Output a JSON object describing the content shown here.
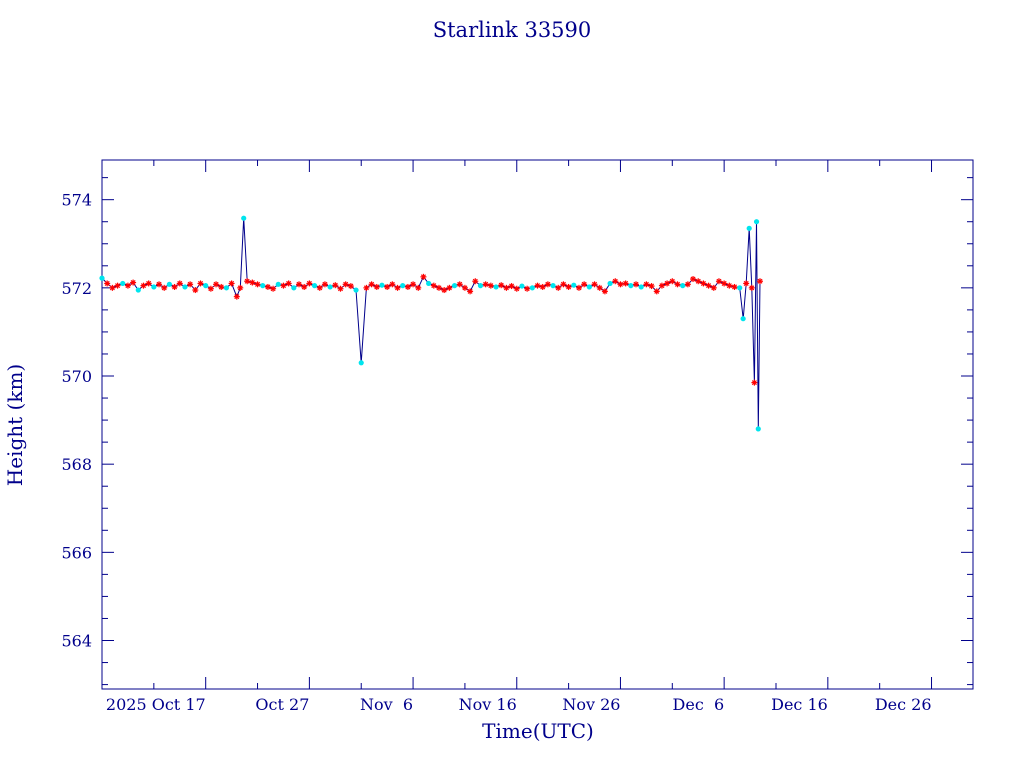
{
  "chart_data": {
    "type": "line",
    "title": "Starlink 33590",
    "xlabel": "Time(UTC)",
    "ylabel": "Height (km)",
    "xlim": [
      "2025-10-07",
      "2025-12-30"
    ],
    "ylim": [
      562.9,
      574.9
    ],
    "yticks": [
      564,
      566,
      568,
      570,
      572,
      574
    ],
    "xticks": [
      {
        "date": "2025-10-17",
        "label": "2025 Oct 17"
      },
      {
        "date": "2025-10-27",
        "label": "Oct 27"
      },
      {
        "date": "2025-11-06",
        "label": "Nov  6"
      },
      {
        "date": "2025-11-16",
        "label": "Nov 16"
      },
      {
        "date": "2025-11-26",
        "label": "Nov 26"
      },
      {
        "date": "2025-12-06",
        "label": "Dec  6"
      },
      {
        "date": "2025-12-16",
        "label": "Dec 16"
      },
      {
        "date": "2025-12-26",
        "label": "Dec 26"
      }
    ],
    "grid": false,
    "colors": {
      "axis": "#00008b",
      "line": "#00008b",
      "red_marker": "#ff0000",
      "cyan_marker": "#00e5ee"
    },
    "series": [
      {
        "marker_colors": "mixed",
        "points": [
          [
            "2025-10-07T00:00",
            572.22,
            "c"
          ],
          [
            "2025-10-07T12:00",
            572.1,
            "r"
          ],
          [
            "2025-10-08T00:00",
            572.0,
            "r"
          ],
          [
            "2025-10-08T12:00",
            572.05,
            "r"
          ],
          [
            "2025-10-09T00:00",
            572.1,
            "c"
          ],
          [
            "2025-10-09T12:00",
            572.05,
            "r"
          ],
          [
            "2025-10-10T00:00",
            572.12,
            "r"
          ],
          [
            "2025-10-10T12:00",
            571.95,
            "c"
          ],
          [
            "2025-10-11T00:00",
            572.05,
            "r"
          ],
          [
            "2025-10-11T12:00",
            572.1,
            "r"
          ],
          [
            "2025-10-12T00:00",
            572.02,
            "c"
          ],
          [
            "2025-10-12T12:00",
            572.08,
            "r"
          ],
          [
            "2025-10-13T00:00",
            572.0,
            "r"
          ],
          [
            "2025-10-13T12:00",
            572.08,
            "c"
          ],
          [
            "2025-10-14T00:00",
            572.02,
            "r"
          ],
          [
            "2025-10-14T12:00",
            572.1,
            "r"
          ],
          [
            "2025-10-15T00:00",
            572.02,
            "c"
          ],
          [
            "2025-10-15T12:00",
            572.08,
            "r"
          ],
          [
            "2025-10-16T00:00",
            571.95,
            "r"
          ],
          [
            "2025-10-16T12:00",
            572.1,
            "r"
          ],
          [
            "2025-10-17T00:00",
            572.05,
            "c"
          ],
          [
            "2025-10-17T12:00",
            571.98,
            "r"
          ],
          [
            "2025-10-18T00:00",
            572.08,
            "r"
          ],
          [
            "2025-10-18T12:00",
            572.02,
            "r"
          ],
          [
            "2025-10-19T00:00",
            572.0,
            "c"
          ],
          [
            "2025-10-19T12:00",
            572.1,
            "r"
          ],
          [
            "2025-10-20T00:00",
            571.8,
            "r"
          ],
          [
            "2025-10-20T08:00",
            572.0,
            "r"
          ],
          [
            "2025-10-20T16:00",
            573.58,
            "c"
          ],
          [
            "2025-10-21T00:00",
            572.15,
            "r"
          ],
          [
            "2025-10-21T12:00",
            572.12,
            "r"
          ],
          [
            "2025-10-22T00:00",
            572.08,
            "r"
          ],
          [
            "2025-10-22T12:00",
            572.05,
            "c"
          ],
          [
            "2025-10-23T00:00",
            572.02,
            "r"
          ],
          [
            "2025-10-23T12:00",
            571.98,
            "r"
          ],
          [
            "2025-10-24T00:00",
            572.08,
            "c"
          ],
          [
            "2025-10-24T12:00",
            572.05,
            "r"
          ],
          [
            "2025-10-25T00:00",
            572.1,
            "r"
          ],
          [
            "2025-10-25T12:00",
            572.0,
            "c"
          ],
          [
            "2025-10-26T00:00",
            572.08,
            "r"
          ],
          [
            "2025-10-26T12:00",
            572.02,
            "r"
          ],
          [
            "2025-10-27T00:00",
            572.1,
            "r"
          ],
          [
            "2025-10-27T12:00",
            572.05,
            "c"
          ],
          [
            "2025-10-28T00:00",
            572.0,
            "r"
          ],
          [
            "2025-10-28T12:00",
            572.08,
            "r"
          ],
          [
            "2025-10-29T00:00",
            572.02,
            "c"
          ],
          [
            "2025-10-29T12:00",
            572.06,
            "r"
          ],
          [
            "2025-10-30T00:00",
            571.98,
            "r"
          ],
          [
            "2025-10-30T12:00",
            572.08,
            "r"
          ],
          [
            "2025-10-31T00:00",
            572.04,
            "r"
          ],
          [
            "2025-10-31T12:00",
            571.95,
            "c"
          ],
          [
            "2025-11-01T00:00",
            570.3,
            "c"
          ],
          [
            "2025-11-01T12:00",
            572.0,
            "r"
          ],
          [
            "2025-11-02T00:00",
            572.08,
            "r"
          ],
          [
            "2025-11-02T12:00",
            572.02,
            "r"
          ],
          [
            "2025-11-03T00:00",
            572.06,
            "c"
          ],
          [
            "2025-11-03T12:00",
            572.02,
            "r"
          ],
          [
            "2025-11-04T00:00",
            572.08,
            "r"
          ],
          [
            "2025-11-04T12:00",
            572.0,
            "r"
          ],
          [
            "2025-11-05T00:00",
            572.05,
            "c"
          ],
          [
            "2025-11-05T12:00",
            572.02,
            "r"
          ],
          [
            "2025-11-06T00:00",
            572.08,
            "r"
          ],
          [
            "2025-11-06T12:00",
            572.0,
            "r"
          ],
          [
            "2025-11-07T00:00",
            572.25,
            "r"
          ],
          [
            "2025-11-07T12:00",
            572.1,
            "c"
          ],
          [
            "2025-11-08T00:00",
            572.05,
            "r"
          ],
          [
            "2025-11-08T12:00",
            572.0,
            "r"
          ],
          [
            "2025-11-09T00:00",
            571.95,
            "r"
          ],
          [
            "2025-11-09T12:00",
            572.0,
            "r"
          ],
          [
            "2025-11-10T00:00",
            572.05,
            "c"
          ],
          [
            "2025-11-10T12:00",
            572.08,
            "r"
          ],
          [
            "2025-11-11T00:00",
            572.0,
            "r"
          ],
          [
            "2025-11-11T12:00",
            571.92,
            "r"
          ],
          [
            "2025-11-12T00:00",
            572.15,
            "r"
          ],
          [
            "2025-11-12T12:00",
            572.05,
            "c"
          ],
          [
            "2025-11-13T00:00",
            572.08,
            "r"
          ],
          [
            "2025-11-13T12:00",
            572.05,
            "r"
          ],
          [
            "2025-11-14T00:00",
            572.02,
            "c"
          ],
          [
            "2025-11-14T12:00",
            572.06,
            "r"
          ],
          [
            "2025-11-15T00:00",
            572.0,
            "r"
          ],
          [
            "2025-11-15T12:00",
            572.04,
            "r"
          ],
          [
            "2025-11-16T00:00",
            571.98,
            "r"
          ],
          [
            "2025-11-16T12:00",
            572.04,
            "c"
          ],
          [
            "2025-11-17T00:00",
            571.98,
            "r"
          ],
          [
            "2025-11-17T12:00",
            572.0,
            "c"
          ],
          [
            "2025-11-18T00:00",
            572.05,
            "r"
          ],
          [
            "2025-11-18T12:00",
            572.02,
            "r"
          ],
          [
            "2025-11-19T00:00",
            572.08,
            "r"
          ],
          [
            "2025-11-19T12:00",
            572.05,
            "c"
          ],
          [
            "2025-11-20T00:00",
            572.0,
            "r"
          ],
          [
            "2025-11-20T12:00",
            572.08,
            "r"
          ],
          [
            "2025-11-21T00:00",
            572.02,
            "r"
          ],
          [
            "2025-11-21T12:00",
            572.06,
            "c"
          ],
          [
            "2025-11-22T00:00",
            572.0,
            "r"
          ],
          [
            "2025-11-22T12:00",
            572.08,
            "r"
          ],
          [
            "2025-11-23T00:00",
            572.02,
            "c"
          ],
          [
            "2025-11-23T12:00",
            572.08,
            "r"
          ],
          [
            "2025-11-24T00:00",
            572.0,
            "r"
          ],
          [
            "2025-11-24T12:00",
            571.92,
            "r"
          ],
          [
            "2025-11-25T00:00",
            572.1,
            "c"
          ],
          [
            "2025-11-25T12:00",
            572.15,
            "r"
          ],
          [
            "2025-11-26T00:00",
            572.08,
            "r"
          ],
          [
            "2025-11-26T12:00",
            572.1,
            "r"
          ],
          [
            "2025-11-27T00:00",
            572.05,
            "c"
          ],
          [
            "2025-11-27T12:00",
            572.08,
            "r"
          ],
          [
            "2025-11-28T00:00",
            572.02,
            "c"
          ],
          [
            "2025-11-28T12:00",
            572.08,
            "r"
          ],
          [
            "2025-11-29T00:00",
            572.04,
            "r"
          ],
          [
            "2025-11-29T12:00",
            571.92,
            "r"
          ],
          [
            "2025-11-30T00:00",
            572.05,
            "r"
          ],
          [
            "2025-11-30T12:00",
            572.1,
            "r"
          ],
          [
            "2025-12-01T00:00",
            572.15,
            "r"
          ],
          [
            "2025-12-01T12:00",
            572.08,
            "r"
          ],
          [
            "2025-12-02T00:00",
            572.05,
            "c"
          ],
          [
            "2025-12-02T12:00",
            572.08,
            "r"
          ],
          [
            "2025-12-03T00:00",
            572.2,
            "r"
          ],
          [
            "2025-12-03T12:00",
            572.15,
            "r"
          ],
          [
            "2025-12-04T00:00",
            572.1,
            "r"
          ],
          [
            "2025-12-04T12:00",
            572.05,
            "r"
          ],
          [
            "2025-12-05T00:00",
            572.0,
            "r"
          ],
          [
            "2025-12-05T12:00",
            572.15,
            "r"
          ],
          [
            "2025-12-06T00:00",
            572.1,
            "r"
          ],
          [
            "2025-12-06T12:00",
            572.05,
            "r"
          ],
          [
            "2025-12-07T00:00",
            572.02,
            "r"
          ],
          [
            "2025-12-07T12:00",
            572.0,
            "c"
          ],
          [
            "2025-12-07T20:00",
            571.3,
            "c"
          ],
          [
            "2025-12-08T03:00",
            572.1,
            "r"
          ],
          [
            "2025-12-08T10:00",
            573.35,
            "c"
          ],
          [
            "2025-12-08T16:00",
            572.0,
            "r"
          ],
          [
            "2025-12-08T22:00",
            569.85,
            "r"
          ],
          [
            "2025-12-09T03:00",
            573.5,
            "c"
          ],
          [
            "2025-12-09T07:00",
            568.8,
            "c"
          ],
          [
            "2025-12-09T11:00",
            572.15,
            "r"
          ]
        ]
      }
    ]
  }
}
